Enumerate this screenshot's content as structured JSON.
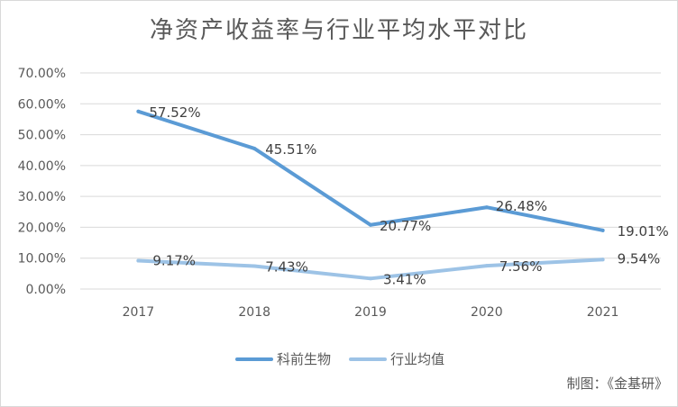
{
  "title": "净资产收益率与行业平均水平对比",
  "source_note": "制图：《金基研》",
  "chart_data": {
    "type": "line",
    "title": "净资产收益率与行业平均水平对比",
    "categories": [
      "2017",
      "2018",
      "2019",
      "2020",
      "2021"
    ],
    "ylim": [
      0,
      70
    ],
    "yticks": [
      0,
      10,
      20,
      30,
      40,
      50,
      60,
      70
    ],
    "ytick_labels": [
      "0.00%",
      "10.00%",
      "20.00%",
      "30.00%",
      "40.00%",
      "50.00%",
      "60.00%",
      "70.00%"
    ],
    "grid": true,
    "legend_position": "bottom",
    "series": [
      {
        "name": "科前生物",
        "values": [
          57.52,
          45.51,
          20.77,
          26.48,
          19.01
        ],
        "labels": [
          "57.52%",
          "45.51%",
          "20.77%",
          "26.48%",
          "19.01%"
        ],
        "color": "#5b9bd5"
      },
      {
        "name": "行业均值",
        "values": [
          9.17,
          7.43,
          3.41,
          7.56,
          9.54
        ],
        "labels": [
          "9.17%",
          "7.43%",
          "3.41%",
          "7.56%",
          "9.54%"
        ],
        "color": "#9dc3e6"
      }
    ]
  }
}
